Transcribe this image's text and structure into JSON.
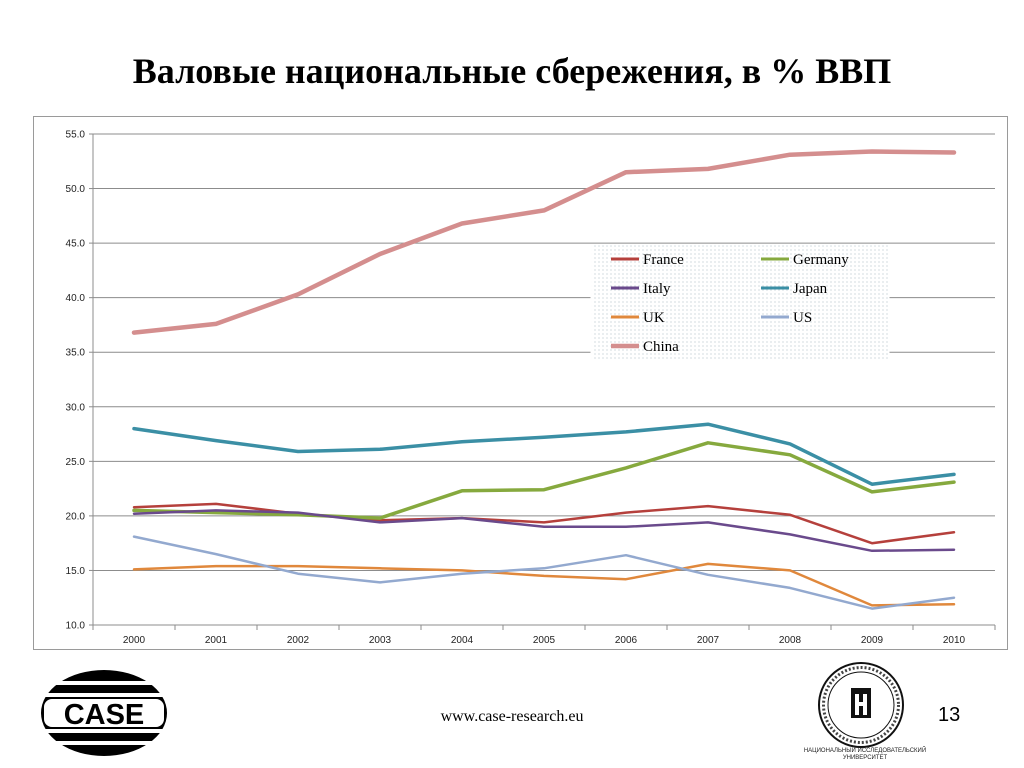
{
  "slide": {
    "title": "Валовые национальные сбережения, в % ВВП",
    "footer_url": "www.case-research.eu",
    "page_number": "13",
    "case_logo_text": "CASE",
    "hse_caption_line1": "НАЦИОНАЛЬНЫЙ ИССЛЕДОВАТЕЛЬСКИЙ",
    "hse_caption_line2": "УНИВЕРСИТЕТ"
  },
  "chart_data": {
    "type": "line",
    "title": "",
    "xlabel": "",
    "ylabel": "",
    "x": [
      "2000",
      "2001",
      "2002",
      "2003",
      "2004",
      "2005",
      "2006",
      "2007",
      "2008",
      "2009",
      "2010"
    ],
    "ylim": [
      10,
      55
    ],
    "yticks": [
      "10.0",
      "15.0",
      "20.0",
      "25.0",
      "30.0",
      "35.0",
      "40.0",
      "45.0",
      "50.0",
      "55.0"
    ],
    "grid": "horizontal",
    "legend_position": "top-right",
    "series": [
      {
        "name": "France",
        "color": "#b5403c",
        "values": [
          20.8,
          21.1,
          20.2,
          19.6,
          19.8,
          19.4,
          20.3,
          20.9,
          20.1,
          17.5,
          18.5
        ]
      },
      {
        "name": "Germany",
        "color": "#86a93e",
        "values": [
          20.5,
          20.3,
          20.1,
          19.8,
          22.3,
          22.4,
          24.4,
          26.7,
          25.6,
          22.2,
          23.1
        ]
      },
      {
        "name": "Italy",
        "color": "#6a4a8c",
        "values": [
          20.2,
          20.5,
          20.3,
          19.4,
          19.8,
          19.0,
          19.0,
          19.4,
          18.3,
          16.8,
          16.9
        ]
      },
      {
        "name": "Japan",
        "color": "#3b8fa5",
        "values": [
          28.0,
          26.9,
          25.9,
          26.1,
          26.8,
          27.2,
          27.7,
          28.4,
          26.6,
          22.9,
          23.8
        ]
      },
      {
        "name": "UK",
        "color": "#e0883c",
        "values": [
          15.1,
          15.4,
          15.4,
          15.2,
          15.0,
          14.5,
          14.2,
          15.6,
          15.0,
          11.8,
          11.9
        ]
      },
      {
        "name": "US",
        "color": "#93a9cf",
        "values": [
          18.1,
          16.5,
          14.7,
          13.9,
          14.7,
          15.2,
          16.4,
          14.6,
          13.4,
          11.5,
          12.5
        ]
      },
      {
        "name": "China",
        "color": "#d48e8e",
        "values": [
          36.8,
          37.6,
          40.3,
          44.0,
          46.8,
          48.0,
          51.5,
          51.8,
          53.1,
          53.4,
          53.3
        ]
      }
    ]
  }
}
